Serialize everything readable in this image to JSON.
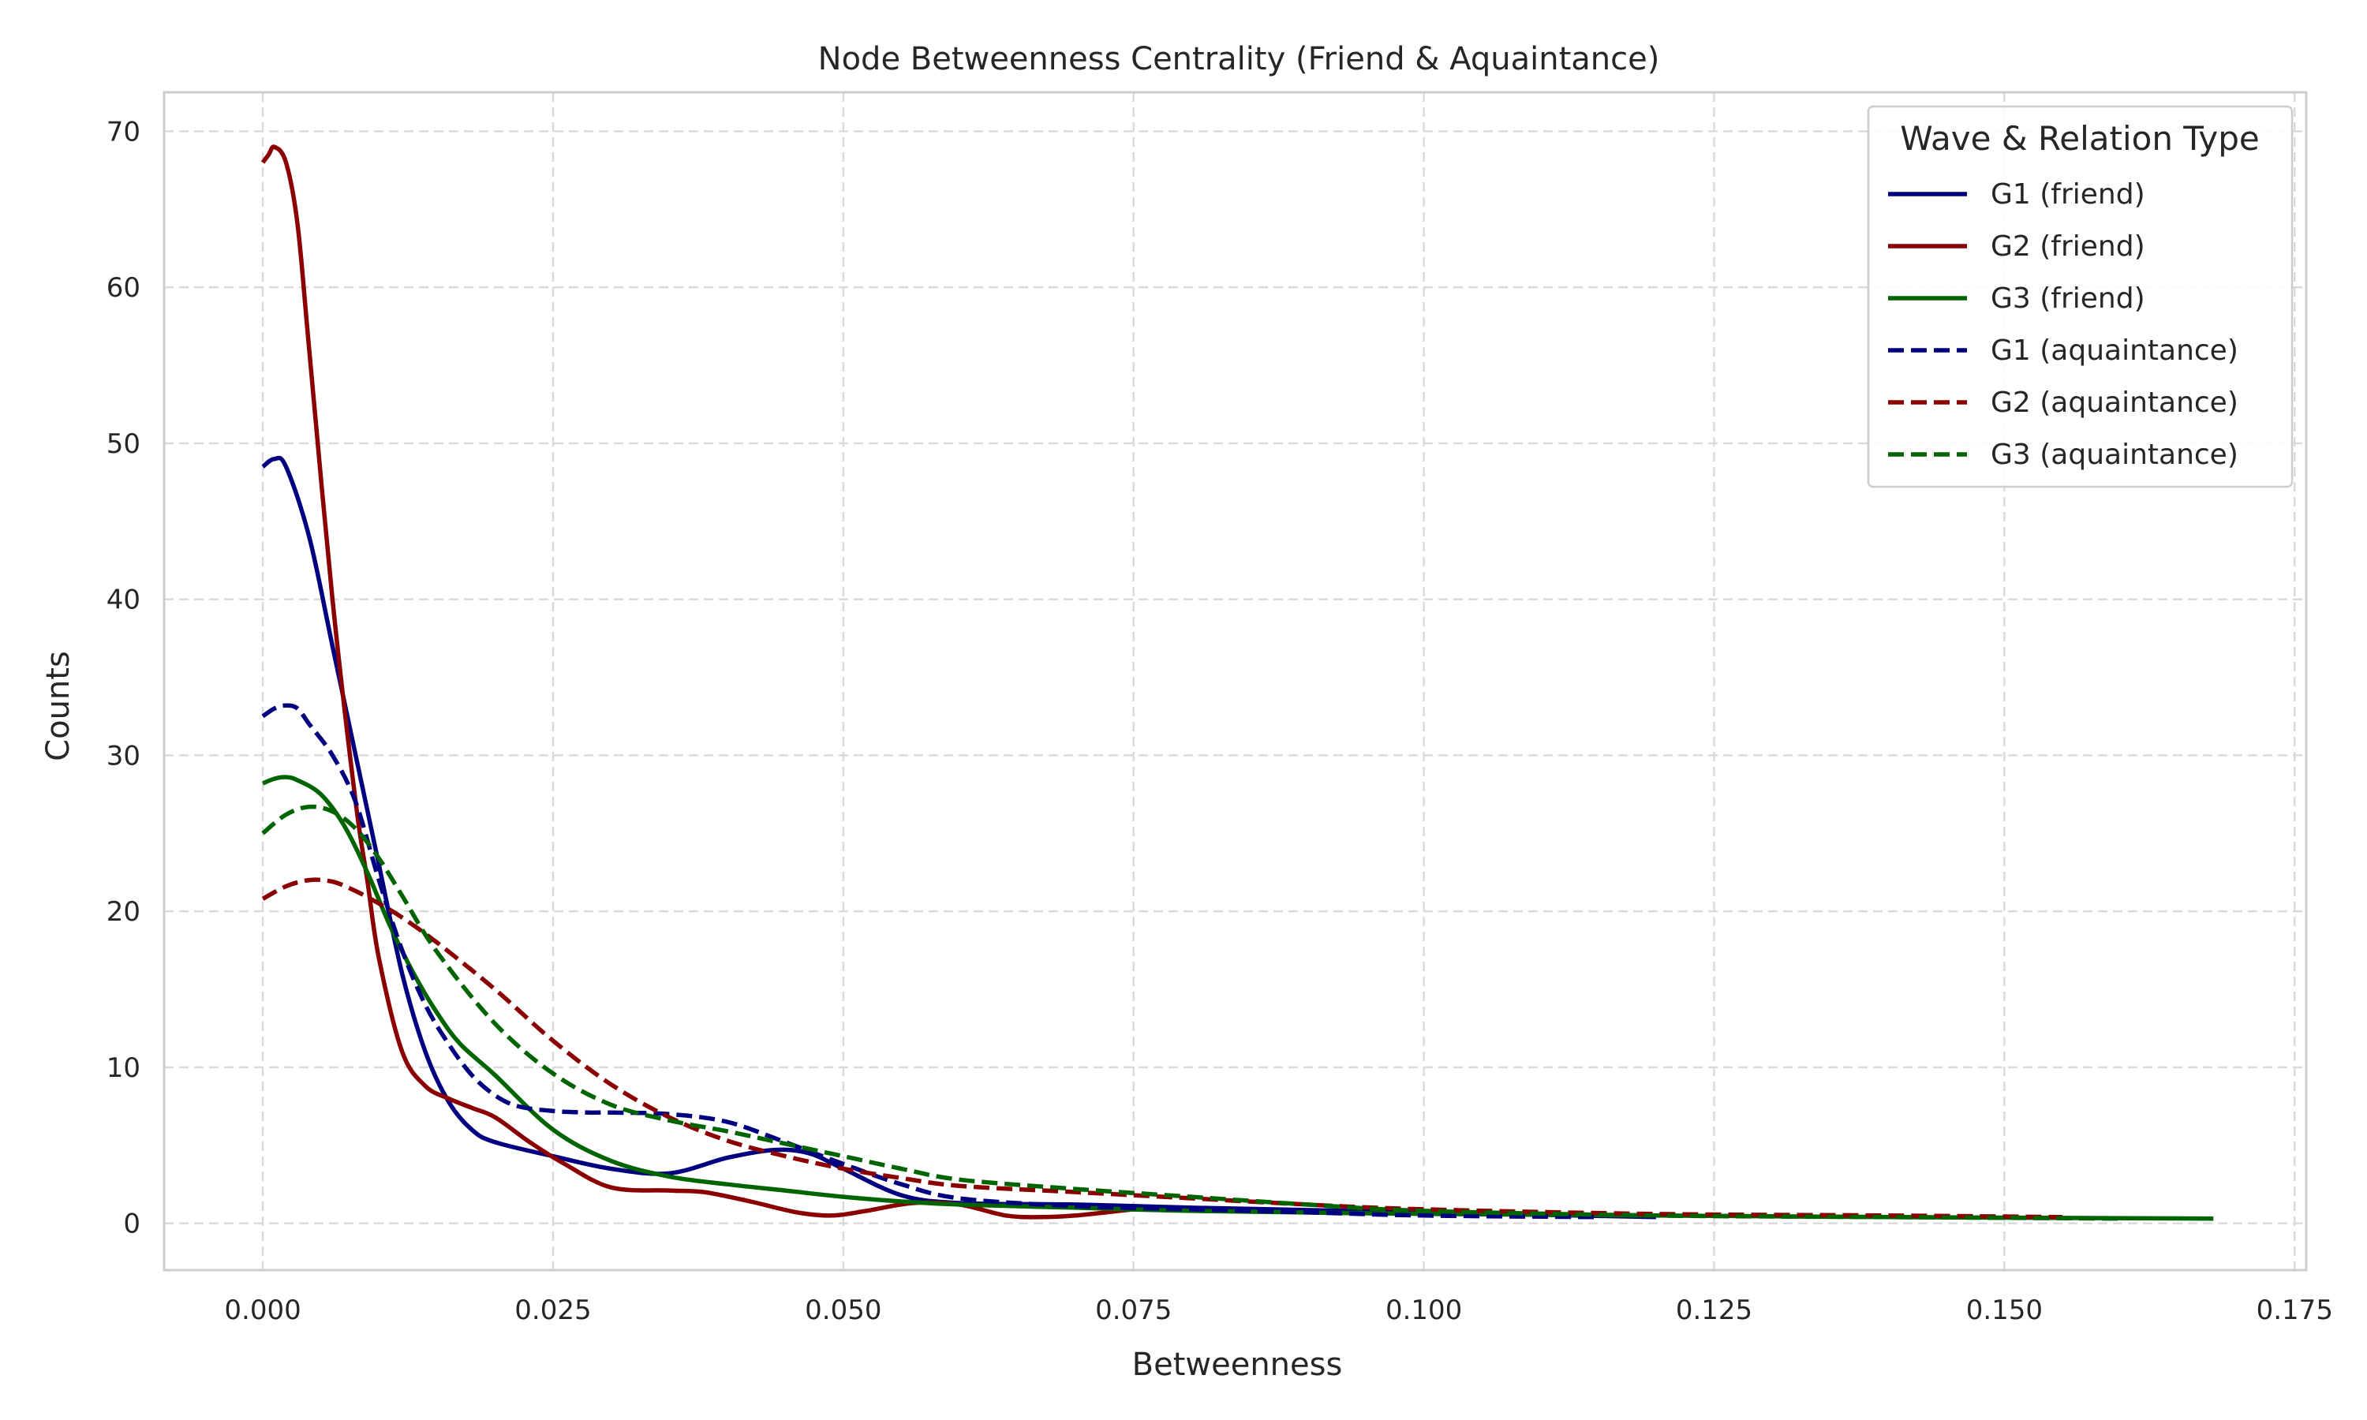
{
  "chart_data": {
    "type": "line",
    "title": "Node Betweenness Centrality (Friend & Aquaintance)",
    "xlabel": "Betweenness",
    "ylabel": "Counts",
    "xlim": [
      -0.0085,
      0.176
    ],
    "ylim": [
      -3,
      72.5
    ],
    "xticks": [
      0.0,
      0.025,
      0.05,
      0.075,
      0.1,
      0.125,
      0.15,
      0.175
    ],
    "xtick_labels": [
      "0.000",
      "0.025",
      "0.050",
      "0.075",
      "0.100",
      "0.125",
      "0.150",
      "0.175"
    ],
    "yticks": [
      0,
      10,
      20,
      30,
      40,
      50,
      60,
      70
    ],
    "ytick_labels": [
      "0",
      "10",
      "20",
      "30",
      "40",
      "50",
      "60",
      "70"
    ],
    "grid": true,
    "legend": {
      "title": "Wave & Relation Type",
      "position": "top-right"
    },
    "series": [
      {
        "name": "G1 (friend)",
        "color": "#000080",
        "style": "solid",
        "x": [
          0,
          0.001,
          0.002,
          0.004,
          0.006,
          0.008,
          0.01,
          0.012,
          0.014,
          0.016,
          0.018,
          0.02,
          0.025,
          0.03,
          0.035,
          0.04,
          0.044,
          0.047,
          0.05,
          0.055,
          0.06,
          0.07,
          0.08,
          0.1,
          0.12
        ],
        "y": [
          48.5,
          49,
          48.5,
          44,
          37,
          30,
          23,
          16,
          11,
          7.8,
          6,
          5.2,
          4.3,
          3.5,
          3.2,
          4.2,
          4.7,
          4.5,
          3.5,
          1.8,
          1.3,
          1.2,
          1.0,
          0.7,
          0.4
        ]
      },
      {
        "name": "G2 (friend)",
        "color": "#8b0000",
        "style": "solid",
        "x": [
          0,
          0.0005,
          0.001,
          0.002,
          0.003,
          0.004,
          0.006,
          0.008,
          0.009,
          0.01,
          0.012,
          0.014,
          0.016,
          0.018,
          0.02,
          0.023,
          0.026,
          0.03,
          0.035,
          0.038,
          0.042,
          0.046,
          0.049,
          0.052,
          0.056,
          0.06,
          0.064,
          0.067,
          0.07,
          0.075
        ],
        "y": [
          68,
          68.5,
          69,
          68,
          64,
          56,
          40,
          27,
          22,
          17,
          11,
          8.8,
          8,
          7.4,
          6.8,
          5.2,
          3.8,
          2.3,
          2.1,
          2.0,
          1.4,
          0.7,
          0.5,
          0.8,
          1.3,
          1.2,
          0.5,
          0.4,
          0.5,
          0.9
        ]
      },
      {
        "name": "G3 (friend)",
        "color": "#006400",
        "style": "solid",
        "x": [
          0,
          0.001,
          0.002,
          0.003,
          0.005,
          0.007,
          0.009,
          0.011,
          0.013,
          0.015,
          0.017,
          0.02,
          0.025,
          0.03,
          0.035,
          0.04,
          0.045,
          0.05,
          0.055,
          0.06,
          0.07,
          0.08,
          0.1,
          0.12,
          0.14,
          0.168
        ],
        "y": [
          28.2,
          28.5,
          28.6,
          28.4,
          27.5,
          25.5,
          22.5,
          19,
          16,
          13.5,
          11.5,
          9.5,
          6,
          4,
          3,
          2.5,
          2.1,
          1.7,
          1.4,
          1.2,
          1.0,
          0.8,
          0.6,
          0.5,
          0.4,
          0.3
        ]
      },
      {
        "name": "G1 (aquaintance)",
        "color": "#000080",
        "style": "dashed",
        "x": [
          0,
          0.001,
          0.002,
          0.003,
          0.004,
          0.006,
          0.008,
          0.01,
          0.012,
          0.014,
          0.016,
          0.018,
          0.02,
          0.022,
          0.025,
          0.028,
          0.03,
          0.035,
          0.04,
          0.045,
          0.05,
          0.055,
          0.06,
          0.07,
          0.08,
          0.09,
          0.1,
          0.115
        ],
        "y": [
          32.5,
          33,
          33.2,
          33,
          32,
          30,
          27,
          22,
          17.5,
          14,
          11.5,
          9.5,
          8.2,
          7.5,
          7.2,
          7.1,
          7.1,
          7.0,
          6.5,
          5.2,
          3.8,
          2.5,
          1.6,
          1.1,
          0.9,
          0.7,
          0.5,
          0.4
        ]
      },
      {
        "name": "G2 (aquaintance)",
        "color": "#8b0000",
        "style": "dashed",
        "x": [
          0,
          0.002,
          0.004,
          0.006,
          0.008,
          0.01,
          0.012,
          0.015,
          0.02,
          0.025,
          0.03,
          0.035,
          0.04,
          0.045,
          0.05,
          0.055,
          0.06,
          0.07,
          0.08,
          0.09,
          0.1,
          0.12,
          0.14,
          0.155
        ],
        "y": [
          20.8,
          21.6,
          22,
          21.9,
          21.3,
          20.5,
          19.6,
          18,
          15,
          11.7,
          8.9,
          6.8,
          5.3,
          4.3,
          3.5,
          2.9,
          2.4,
          2.0,
          1.6,
          1.2,
          0.9,
          0.6,
          0.5,
          0.4
        ]
      },
      {
        "name": "G3 (aquaintance)",
        "color": "#006400",
        "style": "dashed",
        "x": [
          0,
          0.002,
          0.004,
          0.006,
          0.008,
          0.01,
          0.012,
          0.015,
          0.02,
          0.025,
          0.03,
          0.035,
          0.04,
          0.045,
          0.05,
          0.055,
          0.06,
          0.07,
          0.08,
          0.09,
          0.1,
          0.12,
          0.14,
          0.16
        ],
        "y": [
          25,
          26.2,
          26.7,
          26.4,
          25.3,
          23.4,
          21,
          17.4,
          12.8,
          9.6,
          7.6,
          6.6,
          5.9,
          5.1,
          4.3,
          3.5,
          2.8,
          2.2,
          1.7,
          1.2,
          0.8,
          0.5,
          0.4,
          0.3
        ]
      }
    ]
  }
}
